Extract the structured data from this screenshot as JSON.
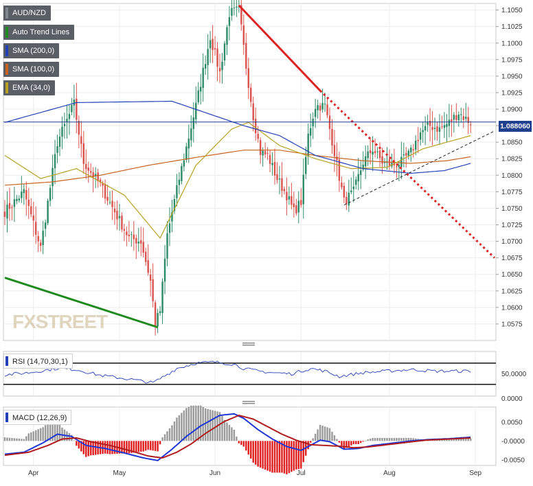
{
  "chart_data": {
    "type": "candlestick",
    "symbol": "AUD/NZD",
    "last_price": "1.088060",
    "x_tick_labels": [
      "Apr",
      "May",
      "Jun",
      "Jul",
      "Aug",
      "Sep"
    ],
    "price_axis": {
      "range": [
        1.055,
        1.106
      ],
      "tick_labels": [
        "1.1050",
        "1.1025",
        "1.1000",
        "1.0975",
        "1.0950",
        "1.0925",
        "1.0900",
        "1.0875",
        "1.0850",
        "1.0825",
        "1.0800",
        "1.0775",
        "1.0750",
        "1.0725",
        "1.0700",
        "1.0675",
        "1.0650",
        "1.0625",
        "1.0600",
        "1.0575"
      ]
    },
    "legend": [
      {
        "label": "AUD/NZD",
        "color": "#7f8790"
      },
      {
        "label": "Auto Trend Lines",
        "color": "#1e8a1e"
      },
      {
        "label": "SMA (200,0)",
        "color": "#2340b8"
      },
      {
        "label": "SMA (100,0)",
        "color": "#c8641e"
      },
      {
        "label": "EMA (34,0)",
        "color": "#b8a020"
      }
    ],
    "price_anchors": [
      [
        0,
        1.0745
      ],
      [
        8,
        1.0775
      ],
      [
        15,
        1.069
      ],
      [
        22,
        1.085
      ],
      [
        29,
        1.0908
      ],
      [
        33,
        1.082
      ],
      [
        40,
        1.0785
      ],
      [
        46,
        1.0745
      ],
      [
        52,
        1.0705
      ],
      [
        57,
        1.07
      ],
      [
        61,
        1.064
      ],
      [
        63,
        1.0575
      ],
      [
        65,
        1.0595
      ],
      [
        68,
        1.071
      ],
      [
        73,
        1.0795
      ],
      [
        80,
        1.0905
      ],
      [
        86,
        1.101
      ],
      [
        90,
        1.0955
      ],
      [
        94,
        1.1045
      ],
      [
        98,
        1.105
      ],
      [
        101,
        1.0965
      ],
      [
        104,
        1.089
      ],
      [
        107,
        1.0835
      ],
      [
        110,
        1.083
      ],
      [
        114,
        1.0795
      ],
      [
        118,
        1.077
      ],
      [
        121,
        1.0745
      ],
      [
        124,
        1.076
      ],
      [
        127,
        1.086
      ],
      [
        130,
        1.0905
      ],
      [
        134,
        1.0905
      ],
      [
        138,
        1.0835
      ],
      [
        142,
        1.076
      ],
      [
        146,
        1.0775
      ],
      [
        150,
        1.082
      ],
      [
        154,
        1.084
      ],
      [
        158,
        1.082
      ],
      [
        162,
        1.0815
      ],
      [
        166,
        1.082
      ],
      [
        170,
        1.0835
      ],
      [
        174,
        1.0865
      ],
      [
        178,
        1.0875
      ],
      [
        182,
        1.087
      ],
      [
        186,
        1.088
      ],
      [
        190,
        1.0895
      ],
      [
        193,
        1.0885
      ],
      [
        195,
        1.088
      ]
    ],
    "sma200": [
      [
        0,
        1.088
      ],
      [
        30,
        1.091
      ],
      [
        70,
        1.0912
      ],
      [
        100,
        1.0875
      ],
      [
        115,
        1.086
      ],
      [
        130,
        1.083
      ],
      [
        150,
        1.081
      ],
      [
        170,
        1.0803
      ],
      [
        184,
        1.0807
      ],
      [
        195,
        1.0818
      ]
    ],
    "sma100": [
      [
        0,
        1.0785
      ],
      [
        20,
        1.079
      ],
      [
        40,
        1.08
      ],
      [
        60,
        1.0815
      ],
      [
        80,
        1.0827
      ],
      [
        100,
        1.0838
      ],
      [
        115,
        1.0838
      ],
      [
        130,
        1.083
      ],
      [
        150,
        1.0822
      ],
      [
        170,
        1.0818
      ],
      [
        185,
        1.0822
      ],
      [
        195,
        1.0828
      ]
    ],
    "ema34": [
      [
        0,
        1.083
      ],
      [
        15,
        1.0795
      ],
      [
        30,
        1.081
      ],
      [
        50,
        1.077
      ],
      [
        65,
        1.0705
      ],
      [
        80,
        1.0815
      ],
      [
        95,
        1.087
      ],
      [
        102,
        1.088
      ],
      [
        115,
        1.0845
      ],
      [
        130,
        1.0825
      ],
      [
        145,
        1.081
      ],
      [
        160,
        1.0812
      ],
      [
        175,
        1.084
      ],
      [
        195,
        1.086
      ]
    ],
    "trend_lines": [
      {
        "from": [
          0,
          1.0645
        ],
        "to": [
          64,
          1.057
        ],
        "color": "#1e8a1e",
        "style": "solid"
      },
      {
        "from": [
          98,
          1.1057
        ],
        "to": [
          132,
          1.0928
        ],
        "color": "#dd2222",
        "style": "solid"
      },
      {
        "from": [
          132,
          1.0928
        ],
        "to": [
          205,
          1.0675
        ],
        "color": "#dd2222",
        "style": "dotted"
      },
      {
        "from": [
          142,
          1.0755
        ],
        "to": [
          205,
          1.0867
        ],
        "color": "#222222",
        "style": "dashed"
      }
    ],
    "rsi": {
      "label": "RSI (14,70,30,1)",
      "levels": [
        70,
        30
      ],
      "tick_labels": [
        "50.0000"
      ],
      "anchors": [
        [
          0,
          48
        ],
        [
          10,
          52
        ],
        [
          22,
          60
        ],
        [
          30,
          58
        ],
        [
          40,
          47
        ],
        [
          52,
          40
        ],
        [
          62,
          33
        ],
        [
          64,
          38
        ],
        [
          72,
          60
        ],
        [
          80,
          70
        ],
        [
          88,
          72
        ],
        [
          96,
          68
        ],
        [
          100,
          60
        ],
        [
          106,
          55
        ],
        [
          112,
          52
        ],
        [
          120,
          50
        ],
        [
          128,
          60
        ],
        [
          134,
          55
        ],
        [
          140,
          45
        ],
        [
          150,
          52
        ],
        [
          160,
          55
        ],
        [
          170,
          58
        ],
        [
          180,
          55
        ],
        [
          195,
          55
        ]
      ]
    },
    "macd": {
      "label": "MACD (12,26,9)",
      "tick_labels": [
        "0.0050",
        "-0.0000",
        "-0.0050"
      ],
      "macd_anchors": [
        [
          0,
          -0.0035
        ],
        [
          8,
          -0.003
        ],
        [
          16,
          -0.0005
        ],
        [
          22,
          0.0018
        ],
        [
          28,
          0.0012
        ],
        [
          34,
          -0.0012
        ],
        [
          42,
          -0.002
        ],
        [
          50,
          -0.0032
        ],
        [
          58,
          -0.0045
        ],
        [
          64,
          -0.0052
        ],
        [
          70,
          -0.0022
        ],
        [
          76,
          0.0012
        ],
        [
          82,
          0.004
        ],
        [
          90,
          0.0068
        ],
        [
          96,
          0.0072
        ],
        [
          100,
          0.006
        ],
        [
          106,
          0.003
        ],
        [
          112,
          0.0005
        ],
        [
          118,
          -0.0015
        ],
        [
          124,
          -0.0025
        ],
        [
          132,
          0.0002
        ],
        [
          136,
          -0.0002
        ],
        [
          142,
          -0.0022
        ],
        [
          148,
          -0.002
        ],
        [
          154,
          -0.0012
        ],
        [
          162,
          -0.0006
        ],
        [
          170,
          0.0
        ],
        [
          178,
          0.0004
        ],
        [
          186,
          0.0006
        ],
        [
          195,
          0.001
        ]
      ],
      "signal_anchors": [
        [
          0,
          -0.0038
        ],
        [
          10,
          -0.003
        ],
        [
          18,
          -0.0012
        ],
        [
          24,
          0.0005
        ],
        [
          30,
          0.0008
        ],
        [
          36,
          -0.0002
        ],
        [
          44,
          -0.0012
        ],
        [
          52,
          -0.0025
        ],
        [
          60,
          -0.004
        ],
        [
          66,
          -0.0045
        ],
        [
          72,
          -0.003
        ],
        [
          78,
          -0.0008
        ],
        [
          84,
          0.002
        ],
        [
          92,
          0.0052
        ],
        [
          98,
          0.0068
        ],
        [
          104,
          0.0058
        ],
        [
          110,
          0.0038
        ],
        [
          116,
          0.0018
        ],
        [
          122,
          0.0002
        ],
        [
          128,
          -0.001
        ],
        [
          134,
          -0.0012
        ],
        [
          140,
          -0.0014
        ],
        [
          146,
          -0.0018
        ],
        [
          152,
          -0.0016
        ],
        [
          160,
          -0.001
        ],
        [
          168,
          -0.0004
        ],
        [
          176,
          0.0002
        ],
        [
          186,
          0.0005
        ],
        [
          195,
          0.0008
        ]
      ]
    },
    "watermark": "FXSTREET"
  }
}
